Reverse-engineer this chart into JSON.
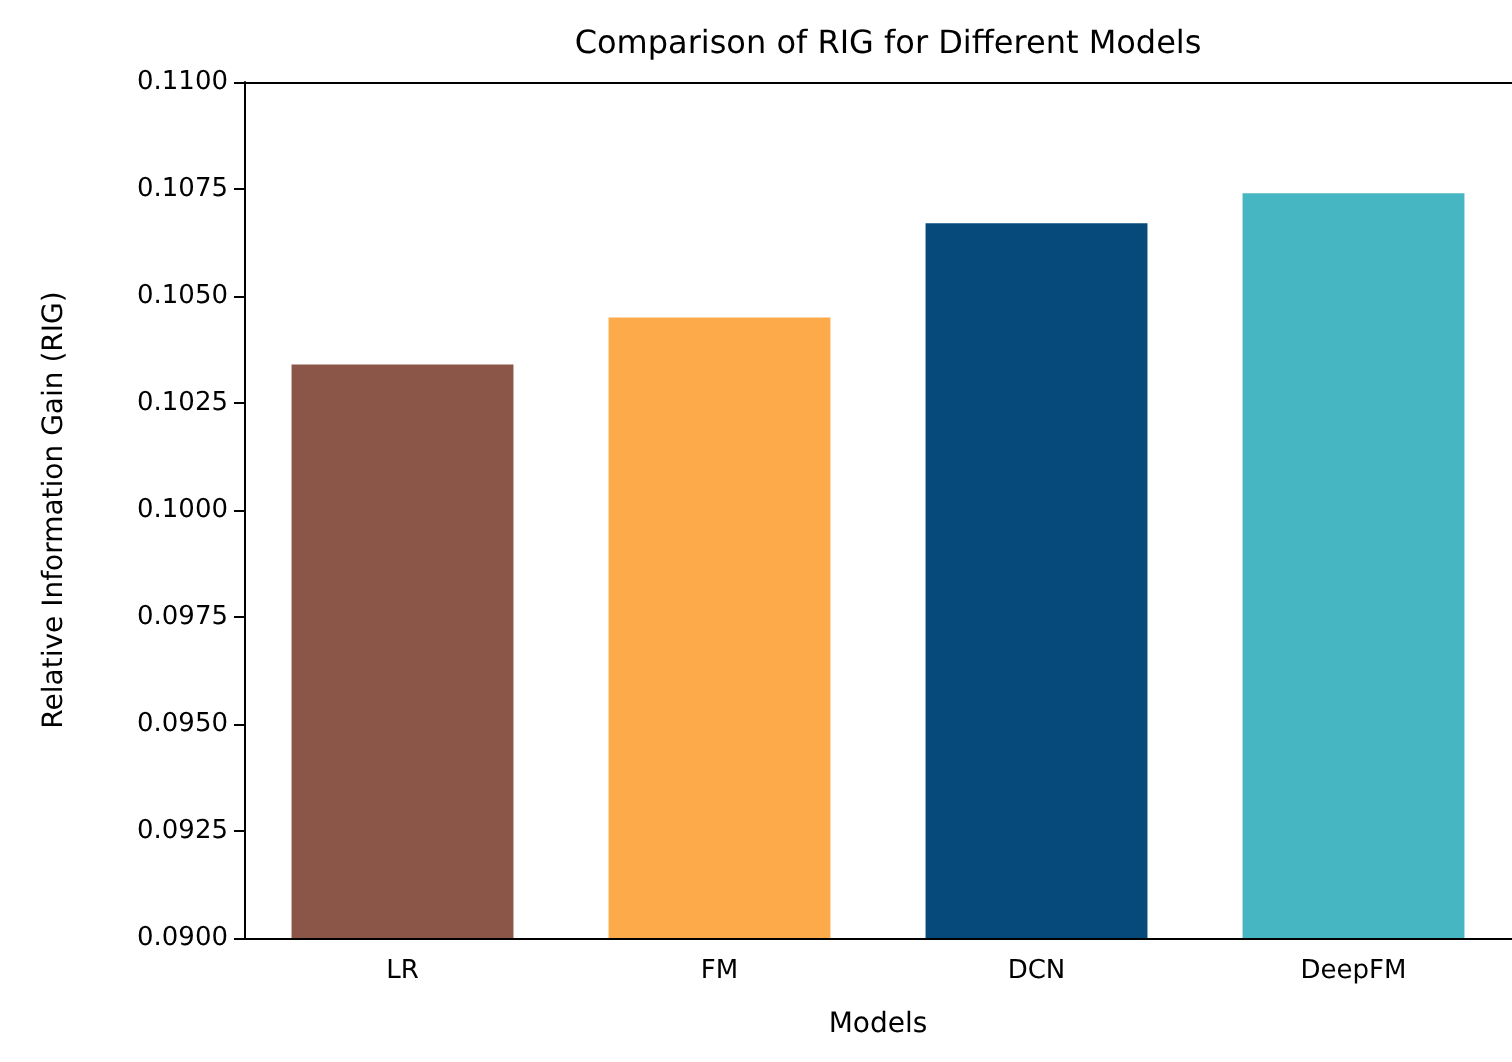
{
  "chart_data": {
    "type": "bar",
    "title": "Comparison of RIG for Different Models",
    "xlabel": "Models",
    "ylabel": "Relative Information Gain (RIG)",
    "categories": [
      "LR",
      "FM",
      "DCN",
      "DeepFM"
    ],
    "values": [
      0.1034,
      0.1045,
      0.1067,
      0.1074
    ],
    "colors": [
      "#8b5647",
      "#fdab4a",
      "#054a7a",
      "#46b6c2"
    ],
    "ylim": [
      0.09,
      0.11
    ],
    "yticks": [
      {
        "value": 0.09,
        "label": "0.0900"
      },
      {
        "value": 0.0925,
        "label": "0.0925"
      },
      {
        "value": 0.095,
        "label": "0.0950"
      },
      {
        "value": 0.0975,
        "label": "0.0975"
      },
      {
        "value": 0.1,
        "label": "0.1000"
      },
      {
        "value": 0.1025,
        "label": "0.1025"
      },
      {
        "value": 0.105,
        "label": "0.1050"
      },
      {
        "value": 0.1075,
        "label": "0.1075"
      },
      {
        "value": 0.11,
        "label": "0.1100"
      }
    ],
    "grid": false
  }
}
